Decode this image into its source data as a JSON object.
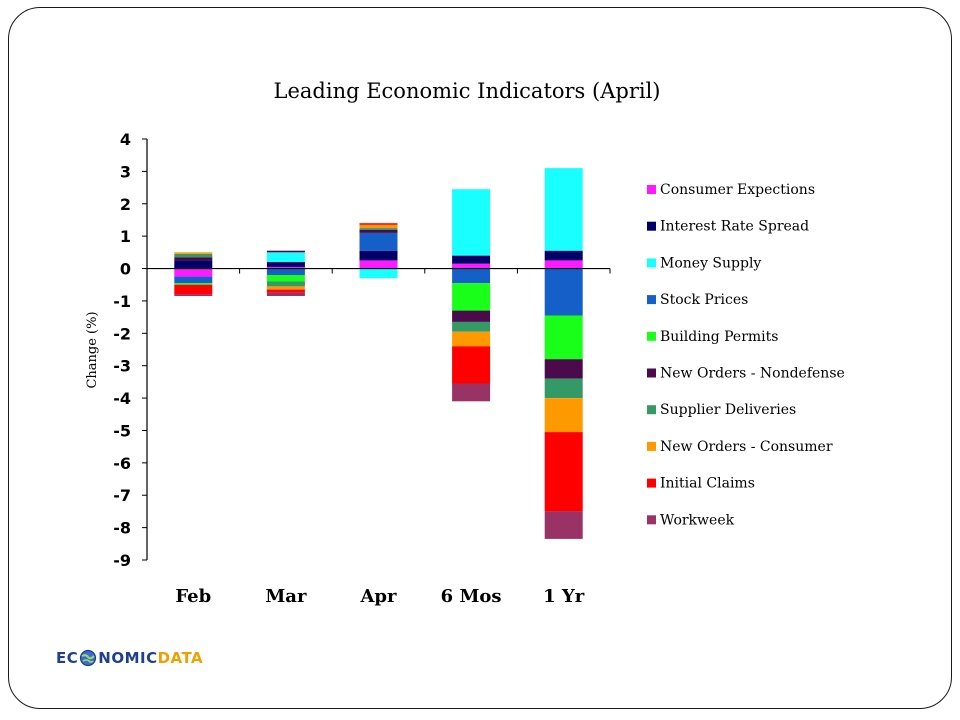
{
  "chart_data": {
    "type": "bar",
    "stacked": true,
    "title": "Leading Economic Indicators (April)",
    "ylabel": "Change (%)",
    "xlabel": "",
    "ylim": [
      -9,
      4
    ],
    "yticks": [
      4,
      3,
      2,
      1,
      0,
      -1,
      -2,
      -3,
      -4,
      -5,
      -6,
      -7,
      -8,
      -9
    ],
    "categories": [
      "Feb",
      "Mar",
      "Apr",
      "6 Mos",
      "1 Yr"
    ],
    "legend_position": "right",
    "series": [
      {
        "name": "Consumer Expections",
        "color": "#ff19ff",
        "values": [
          -0.25,
          0.05,
          0.25,
          0.15,
          0.25
        ]
      },
      {
        "name": "Interest Rate Spread",
        "color": "#000066",
        "values": [
          0.25,
          0.15,
          0.3,
          0.25,
          0.3
        ]
      },
      {
        "name": "Money Supply",
        "color": "#19ffff",
        "values": [
          0.0,
          0.3,
          -0.3,
          2.05,
          2.55
        ]
      },
      {
        "name": "Stock Prices",
        "color": "#1560c8",
        "values": [
          -0.2,
          -0.2,
          0.55,
          -0.45,
          -1.45
        ]
      },
      {
        "name": "Building Permits",
        "color": "#19ff19",
        "values": [
          -0.05,
          -0.2,
          0.0,
          -0.85,
          -1.35
        ]
      },
      {
        "name": "New Orders - Nondefense",
        "color": "#4b0a4b",
        "values": [
          0.1,
          0.05,
          0.1,
          -0.35,
          -0.6
        ]
      },
      {
        "name": "Supplier Deliveries",
        "color": "#339966",
        "values": [
          0.1,
          -0.15,
          0.05,
          -0.3,
          -0.6
        ]
      },
      {
        "name": "New Orders - Consumer",
        "color": "#ff9900",
        "values": [
          0.05,
          -0.1,
          0.1,
          -0.45,
          -1.05
        ]
      },
      {
        "name": "Initial Claims",
        "color": "#ff0000",
        "values": [
          -0.3,
          -0.1,
          0.05,
          -1.15,
          -2.45
        ]
      },
      {
        "name": "Workweek",
        "color": "#993366",
        "values": [
          -0.05,
          -0.1,
          0.0,
          -0.55,
          -0.85
        ]
      }
    ]
  },
  "logo": {
    "text_left": "EC",
    "text_middle": "NOMIC",
    "text_right": "DATA"
  }
}
